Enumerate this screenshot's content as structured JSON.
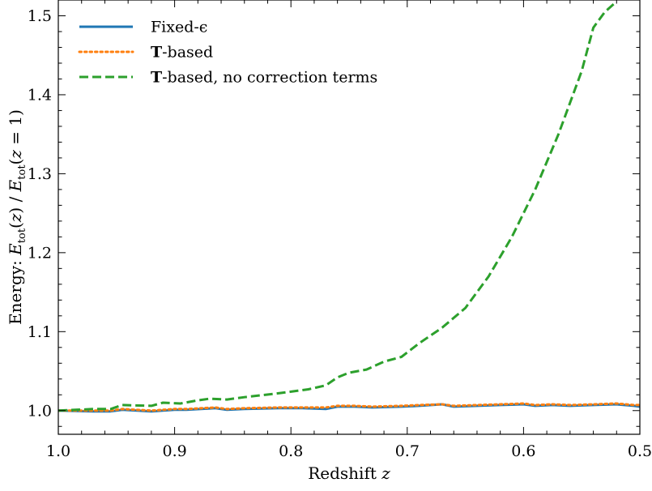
{
  "chart_data": {
    "type": "line",
    "xlabel": "Redshift z",
    "ylabel": "Energy: E_tot(z) / E_tot(z = 1)",
    "xlim": [
      1.0,
      0.5
    ],
    "ylim": [
      0.97,
      1.52
    ],
    "x_reversed": true,
    "grid": false,
    "legend_position": "top-left",
    "x_ticks": [
      {
        "value": 1.0,
        "label": "1.0"
      },
      {
        "value": 0.9,
        "label": "0.9"
      },
      {
        "value": 0.8,
        "label": "0.8"
      },
      {
        "value": 0.7,
        "label": "0.7"
      },
      {
        "value": 0.6,
        "label": "0.6"
      },
      {
        "value": 0.5,
        "label": "0.5"
      }
    ],
    "y_ticks": [
      {
        "value": 1.0,
        "label": "1.0"
      },
      {
        "value": 1.1,
        "label": "1.1"
      },
      {
        "value": 1.2,
        "label": "1.2"
      },
      {
        "value": 1.3,
        "label": "1.3"
      },
      {
        "value": 1.4,
        "label": "1.4"
      },
      {
        "value": 1.5,
        "label": "1.5"
      }
    ],
    "series": [
      {
        "name": "Fixed-ϵ",
        "legend_bold": "",
        "legend_rest": "Fixed-ϵ",
        "color": "#1f77b4",
        "style": "solid",
        "x": [
          1.0,
          0.97,
          0.955,
          0.945,
          0.92,
          0.9,
          0.89,
          0.865,
          0.855,
          0.84,
          0.81,
          0.79,
          0.77,
          0.76,
          0.745,
          0.73,
          0.705,
          0.69,
          0.67,
          0.66,
          0.64,
          0.62,
          0.6,
          0.59,
          0.575,
          0.56,
          0.54,
          0.52,
          0.505,
          0.5
        ],
        "y": [
          1.0,
          0.999,
          0.999,
          1.001,
          0.999,
          1.001,
          1.001,
          1.003,
          1.001,
          1.002,
          1.003,
          1.003,
          1.002,
          1.005,
          1.005,
          1.004,
          1.005,
          1.006,
          1.008,
          1.005,
          1.006,
          1.007,
          1.008,
          1.006,
          1.007,
          1.006,
          1.007,
          1.008,
          1.006,
          1.005
        ]
      },
      {
        "name": "T-based",
        "legend_bold": "T",
        "legend_rest": "-based",
        "color": "#ff7f0e",
        "style": "dotted",
        "x": [
          1.0,
          0.97,
          0.955,
          0.945,
          0.92,
          0.9,
          0.89,
          0.865,
          0.855,
          0.84,
          0.81,
          0.79,
          0.77,
          0.76,
          0.745,
          0.73,
          0.705,
          0.69,
          0.67,
          0.66,
          0.64,
          0.62,
          0.6,
          0.59,
          0.575,
          0.56,
          0.54,
          0.52,
          0.505,
          0.5
        ],
        "y": [
          1.0,
          1.0,
          1.0,
          1.002,
          1.0,
          1.002,
          1.002,
          1.004,
          1.002,
          1.003,
          1.004,
          1.004,
          1.004,
          1.006,
          1.006,
          1.005,
          1.006,
          1.007,
          1.008,
          1.006,
          1.007,
          1.008,
          1.009,
          1.007,
          1.008,
          1.007,
          1.008,
          1.009,
          1.007,
          1.007
        ]
      },
      {
        "name": "T-based, no correction terms",
        "legend_bold": "T",
        "legend_rest": "-based, no correction terms",
        "color": "#2ca02c",
        "style": "dashed",
        "x": [
          1.0,
          0.97,
          0.955,
          0.945,
          0.92,
          0.91,
          0.895,
          0.88,
          0.87,
          0.855,
          0.84,
          0.81,
          0.785,
          0.77,
          0.76,
          0.75,
          0.735,
          0.72,
          0.705,
          0.69,
          0.67,
          0.65,
          0.63,
          0.61,
          0.59,
          0.57,
          0.55,
          0.54,
          0.53,
          0.52
        ],
        "y": [
          1.0,
          1.002,
          1.002,
          1.007,
          1.006,
          1.01,
          1.009,
          1.013,
          1.015,
          1.014,
          1.017,
          1.022,
          1.027,
          1.032,
          1.042,
          1.048,
          1.052,
          1.062,
          1.068,
          1.085,
          1.105,
          1.13,
          1.17,
          1.22,
          1.28,
          1.35,
          1.43,
          1.485,
          1.505,
          1.518
        ]
      }
    ]
  }
}
